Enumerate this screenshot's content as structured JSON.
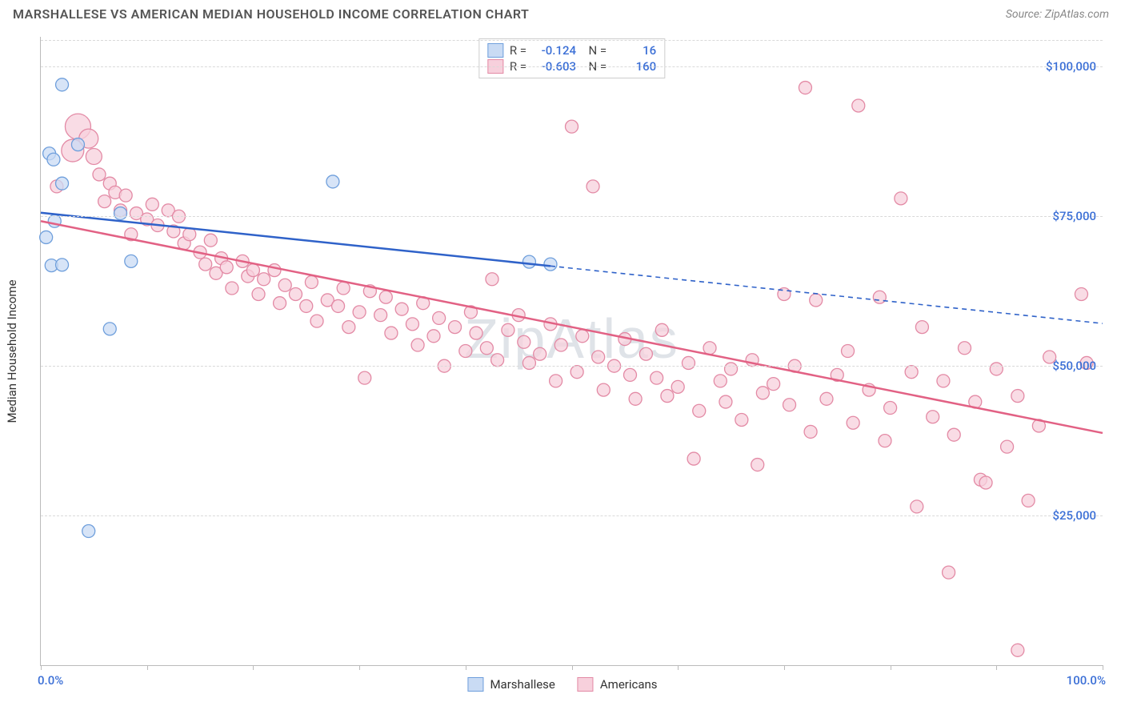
{
  "title": "MARSHALLESE VS AMERICAN MEDIAN HOUSEHOLD INCOME CORRELATION CHART",
  "source_label": "Source: ",
  "source_value": "ZipAtlas.com",
  "watermark": "ZipAtlas",
  "y_axis_title": "Median Household Income",
  "chart": {
    "type": "scatter",
    "x_min": 0,
    "x_max": 100,
    "y_min": 0,
    "y_max": 105000,
    "y_ticks": [
      25000,
      50000,
      75000,
      100000
    ],
    "y_tick_labels": [
      "$25,000",
      "$50,000",
      "$75,000",
      "$100,000"
    ],
    "x_ticks": [
      0,
      10,
      20,
      30,
      40,
      50,
      60,
      70,
      80,
      90,
      100
    ],
    "x_start_label": "0.0%",
    "x_end_label": "100.0%",
    "grid_color": "#d9d9d9",
    "axis_color": "#bbbbbb",
    "tick_label_color": "#3b6fd6",
    "background_color": "#ffffff",
    "series": [
      {
        "name": "Marshallese",
        "color_fill": "#c9dbf4",
        "color_stroke": "#6f9fdc",
        "line_color": "#2f62c9",
        "R": "-0.124",
        "N": "16",
        "trend": {
          "x1": 0,
          "y1": 75600,
          "x2": 48,
          "y2": 66700,
          "x2_ext": 100,
          "y2_ext": 57100
        },
        "points": [
          {
            "x": 2.0,
            "y": 97000,
            "r": 8
          },
          {
            "x": 0.8,
            "y": 85500,
            "r": 8
          },
          {
            "x": 1.2,
            "y": 84500,
            "r": 8
          },
          {
            "x": 3.5,
            "y": 87000,
            "r": 8
          },
          {
            "x": 2.0,
            "y": 80500,
            "r": 8
          },
          {
            "x": 1.3,
            "y": 74200,
            "r": 8
          },
          {
            "x": 0.5,
            "y": 71500,
            "r": 8
          },
          {
            "x": 1.0,
            "y": 66800,
            "r": 8
          },
          {
            "x": 2.0,
            "y": 66900,
            "r": 8
          },
          {
            "x": 7.5,
            "y": 75500,
            "r": 8
          },
          {
            "x": 8.5,
            "y": 67500,
            "r": 8
          },
          {
            "x": 6.5,
            "y": 56200,
            "r": 8
          },
          {
            "x": 27.5,
            "y": 80800,
            "r": 8
          },
          {
            "x": 46.0,
            "y": 67400,
            "r": 8
          },
          {
            "x": 48.0,
            "y": 67000,
            "r": 8
          },
          {
            "x": 4.5,
            "y": 22400,
            "r": 8
          }
        ]
      },
      {
        "name": "Americans",
        "color_fill": "#f7d0dc",
        "color_stroke": "#e38aa5",
        "line_color": "#e26184",
        "R": "-0.603",
        "N": "160",
        "trend": {
          "x1": 0,
          "y1": 74200,
          "x2": 100,
          "y2": 38800
        },
        "points": [
          {
            "x": 3.5,
            "y": 90000,
            "r": 16
          },
          {
            "x": 4.5,
            "y": 88000,
            "r": 12
          },
          {
            "x": 3,
            "y": 86000,
            "r": 14
          },
          {
            "x": 5,
            "y": 85000,
            "r": 10
          },
          {
            "x": 1.5,
            "y": 80000,
            "r": 8
          },
          {
            "x": 5.5,
            "y": 82000,
            "r": 8
          },
          {
            "x": 6.5,
            "y": 80500,
            "r": 8
          },
          {
            "x": 7,
            "y": 79000,
            "r": 8
          },
          {
            "x": 6,
            "y": 77500,
            "r": 8
          },
          {
            "x": 7.5,
            "y": 76000,
            "r": 8
          },
          {
            "x": 8,
            "y": 78500,
            "r": 8
          },
          {
            "x": 8.5,
            "y": 72000,
            "r": 8
          },
          {
            "x": 9,
            "y": 75500,
            "r": 8
          },
          {
            "x": 10,
            "y": 74500,
            "r": 8
          },
          {
            "x": 10.5,
            "y": 77000,
            "r": 8
          },
          {
            "x": 11,
            "y": 73500,
            "r": 8
          },
          {
            "x": 12,
            "y": 76000,
            "r": 8
          },
          {
            "x": 12.5,
            "y": 72500,
            "r": 8
          },
          {
            "x": 13,
            "y": 75000,
            "r": 8
          },
          {
            "x": 13.5,
            "y": 70500,
            "r": 8
          },
          {
            "x": 14,
            "y": 72000,
            "r": 8
          },
          {
            "x": 15,
            "y": 69000,
            "r": 8
          },
          {
            "x": 15.5,
            "y": 67000,
            "r": 8
          },
          {
            "x": 16,
            "y": 71000,
            "r": 8
          },
          {
            "x": 16.5,
            "y": 65500,
            "r": 8
          },
          {
            "x": 17,
            "y": 68000,
            "r": 8
          },
          {
            "x": 17.5,
            "y": 66500,
            "r": 8
          },
          {
            "x": 18,
            "y": 63000,
            "r": 8
          },
          {
            "x": 19,
            "y": 67500,
            "r": 8
          },
          {
            "x": 19.5,
            "y": 65000,
            "r": 8
          },
          {
            "x": 20,
            "y": 66000,
            "r": 8
          },
          {
            "x": 20.5,
            "y": 62000,
            "r": 8
          },
          {
            "x": 21,
            "y": 64500,
            "r": 8
          },
          {
            "x": 22,
            "y": 66000,
            "r": 8
          },
          {
            "x": 22.5,
            "y": 60500,
            "r": 8
          },
          {
            "x": 23,
            "y": 63500,
            "r": 8
          },
          {
            "x": 24,
            "y": 62000,
            "r": 8
          },
          {
            "x": 25,
            "y": 60000,
            "r": 8
          },
          {
            "x": 25.5,
            "y": 64000,
            "r": 8
          },
          {
            "x": 26,
            "y": 57500,
            "r": 8
          },
          {
            "x": 27,
            "y": 61000,
            "r": 8
          },
          {
            "x": 28,
            "y": 60000,
            "r": 8
          },
          {
            "x": 28.5,
            "y": 63000,
            "r": 8
          },
          {
            "x": 29,
            "y": 56500,
            "r": 8
          },
          {
            "x": 30,
            "y": 59000,
            "r": 8
          },
          {
            "x": 30.5,
            "y": 48000,
            "r": 8
          },
          {
            "x": 31,
            "y": 62500,
            "r": 8
          },
          {
            "x": 32,
            "y": 58500,
            "r": 8
          },
          {
            "x": 32.5,
            "y": 61500,
            "r": 8
          },
          {
            "x": 33,
            "y": 55500,
            "r": 8
          },
          {
            "x": 34,
            "y": 59500,
            "r": 8
          },
          {
            "x": 35,
            "y": 57000,
            "r": 8
          },
          {
            "x": 35.5,
            "y": 53500,
            "r": 8
          },
          {
            "x": 36,
            "y": 60500,
            "r": 8
          },
          {
            "x": 37,
            "y": 55000,
            "r": 8
          },
          {
            "x": 37.5,
            "y": 58000,
            "r": 8
          },
          {
            "x": 38,
            "y": 50000,
            "r": 8
          },
          {
            "x": 39,
            "y": 56500,
            "r": 8
          },
          {
            "x": 40,
            "y": 52500,
            "r": 8
          },
          {
            "x": 40.5,
            "y": 59000,
            "r": 8
          },
          {
            "x": 41,
            "y": 55500,
            "r": 8
          },
          {
            "x": 42,
            "y": 53000,
            "r": 8
          },
          {
            "x": 42.5,
            "y": 64500,
            "r": 8
          },
          {
            "x": 43,
            "y": 51000,
            "r": 8
          },
          {
            "x": 44,
            "y": 56000,
            "r": 8
          },
          {
            "x": 45,
            "y": 58500,
            "r": 8
          },
          {
            "x": 45.5,
            "y": 54000,
            "r": 8
          },
          {
            "x": 46,
            "y": 50500,
            "r": 8
          },
          {
            "x": 47,
            "y": 52000,
            "r": 8
          },
          {
            "x": 48,
            "y": 57000,
            "r": 8
          },
          {
            "x": 48.5,
            "y": 47500,
            "r": 8
          },
          {
            "x": 49,
            "y": 53500,
            "r": 8
          },
          {
            "x": 50,
            "y": 90000,
            "r": 8
          },
          {
            "x": 50.5,
            "y": 49000,
            "r": 8
          },
          {
            "x": 51,
            "y": 55000,
            "r": 8
          },
          {
            "x": 52,
            "y": 80000,
            "r": 8
          },
          {
            "x": 52.5,
            "y": 51500,
            "r": 8
          },
          {
            "x": 53,
            "y": 46000,
            "r": 8
          },
          {
            "x": 54,
            "y": 50000,
            "r": 8
          },
          {
            "x": 55,
            "y": 54500,
            "r": 8
          },
          {
            "x": 55.5,
            "y": 48500,
            "r": 8
          },
          {
            "x": 56,
            "y": 44500,
            "r": 8
          },
          {
            "x": 57,
            "y": 52000,
            "r": 8
          },
          {
            "x": 58,
            "y": 48000,
            "r": 8
          },
          {
            "x": 58.5,
            "y": 56000,
            "r": 8
          },
          {
            "x": 59,
            "y": 45000,
            "r": 8
          },
          {
            "x": 60,
            "y": 46500,
            "r": 8
          },
          {
            "x": 61,
            "y": 50500,
            "r": 8
          },
          {
            "x": 61.5,
            "y": 34500,
            "r": 8
          },
          {
            "x": 62,
            "y": 42500,
            "r": 8
          },
          {
            "x": 63,
            "y": 53000,
            "r": 8
          },
          {
            "x": 64,
            "y": 47500,
            "r": 8
          },
          {
            "x": 64.5,
            "y": 44000,
            "r": 8
          },
          {
            "x": 65,
            "y": 49500,
            "r": 8
          },
          {
            "x": 66,
            "y": 41000,
            "r": 8
          },
          {
            "x": 67,
            "y": 51000,
            "r": 8
          },
          {
            "x": 67.5,
            "y": 33500,
            "r": 8
          },
          {
            "x": 68,
            "y": 45500,
            "r": 8
          },
          {
            "x": 69,
            "y": 47000,
            "r": 8
          },
          {
            "x": 70,
            "y": 62000,
            "r": 8
          },
          {
            "x": 70.5,
            "y": 43500,
            "r": 8
          },
          {
            "x": 71,
            "y": 50000,
            "r": 8
          },
          {
            "x": 72,
            "y": 96500,
            "r": 8
          },
          {
            "x": 72.5,
            "y": 39000,
            "r": 8
          },
          {
            "x": 73,
            "y": 61000,
            "r": 8
          },
          {
            "x": 74,
            "y": 44500,
            "r": 8
          },
          {
            "x": 75,
            "y": 48500,
            "r": 8
          },
          {
            "x": 76,
            "y": 52500,
            "r": 8
          },
          {
            "x": 76.5,
            "y": 40500,
            "r": 8
          },
          {
            "x": 77,
            "y": 93500,
            "r": 8
          },
          {
            "x": 78,
            "y": 46000,
            "r": 8
          },
          {
            "x": 79,
            "y": 61500,
            "r": 8
          },
          {
            "x": 79.5,
            "y": 37500,
            "r": 8
          },
          {
            "x": 80,
            "y": 43000,
            "r": 8
          },
          {
            "x": 81,
            "y": 78000,
            "r": 8
          },
          {
            "x": 82,
            "y": 49000,
            "r": 8
          },
          {
            "x": 82.5,
            "y": 26500,
            "r": 8
          },
          {
            "x": 83,
            "y": 56500,
            "r": 8
          },
          {
            "x": 84,
            "y": 41500,
            "r": 8
          },
          {
            "x": 85,
            "y": 47500,
            "r": 8
          },
          {
            "x": 85.5,
            "y": 15500,
            "r": 8
          },
          {
            "x": 86,
            "y": 38500,
            "r": 8
          },
          {
            "x": 87,
            "y": 53000,
            "r": 8
          },
          {
            "x": 88,
            "y": 44000,
            "r": 8
          },
          {
            "x": 88.5,
            "y": 31000,
            "r": 8
          },
          {
            "x": 89,
            "y": 30500,
            "r": 8
          },
          {
            "x": 90,
            "y": 49500,
            "r": 8
          },
          {
            "x": 91,
            "y": 36500,
            "r": 8
          },
          {
            "x": 92,
            "y": 45000,
            "r": 8
          },
          {
            "x": 93,
            "y": 27500,
            "r": 8
          },
          {
            "x": 94,
            "y": 40000,
            "r": 8
          },
          {
            "x": 95,
            "y": 51500,
            "r": 8
          },
          {
            "x": 98.5,
            "y": 50500,
            "r": 8
          },
          {
            "x": 98,
            "y": 62000,
            "r": 8
          },
          {
            "x": 92,
            "y": 2500,
            "r": 8
          }
        ]
      }
    ]
  },
  "legend_bottom": [
    {
      "label": "Marshallese",
      "fill": "#c9dbf4",
      "stroke": "#6f9fdc"
    },
    {
      "label": "Americans",
      "fill": "#f7d0dc",
      "stroke": "#e38aa5"
    }
  ]
}
